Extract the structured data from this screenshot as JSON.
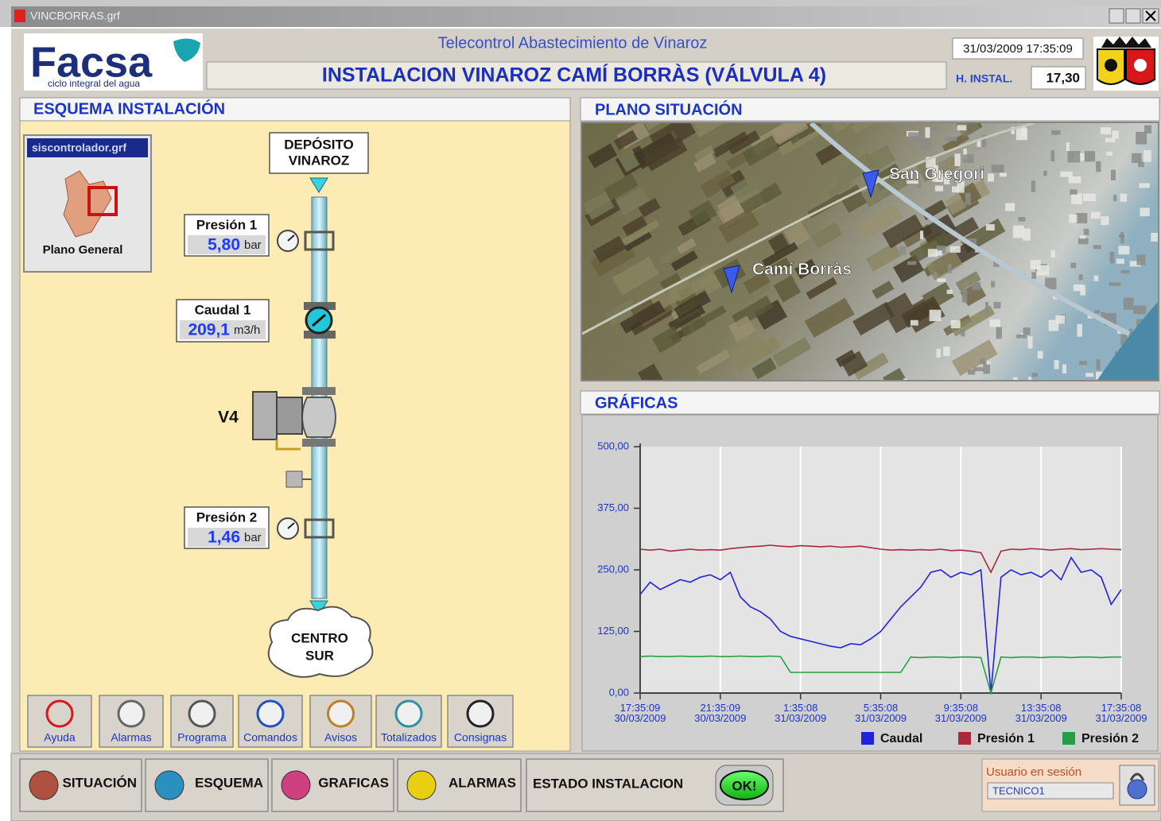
{
  "window": {
    "title": "VINCBORRAS.grf"
  },
  "header": {
    "logo": "Facsa",
    "logo_tagline": "ciclo integral del agua",
    "subtitle": "Telecontrol Abastecimiento de Vinaroz",
    "title": "INSTALACION VINAROZ CAMÍ BORRÀS (VÁLVULA 4)",
    "datetime": "31/03/2009 17:35:09",
    "h_instal_label": "H. INSTAL.",
    "h_instal_value": "17,30"
  },
  "esquema": {
    "title": "ESQUEMA INSTALACIÓN",
    "window_title": "siscontrolador.grf",
    "plano_general": "Plano General",
    "deposito": [
      "DEPÓSITO",
      "VINAROZ"
    ],
    "sensors": [
      {
        "label": "Presión 1",
        "value": "5,80",
        "unit": "bar"
      },
      {
        "label": "Caudal 1",
        "value": "209,1",
        "unit": "m3/h"
      },
      {
        "label": "Presión 2",
        "value": "1,46",
        "unit": "bar"
      }
    ],
    "valve": "V4",
    "destination": [
      "CENTRO",
      "SUR"
    ],
    "toolbar": [
      "Ayuda",
      "Alarmas",
      "Programa",
      "Comandos",
      "Avisos",
      "Totalizados",
      "Consignas"
    ]
  },
  "plano": {
    "title": "PLANO SITUACIÓN",
    "places": [
      "San Gregori",
      "Camí Borràs"
    ]
  },
  "graficas": {
    "title": "GRÁFICAS"
  },
  "chart_data": {
    "type": "line",
    "x": [
      0,
      0.5,
      1,
      1.5,
      2,
      2.5,
      3,
      3.5,
      4,
      4.5,
      5,
      5.5,
      6,
      6.5,
      7,
      7.5,
      8,
      8.5,
      9,
      9.5,
      10,
      10.5,
      11,
      11.5,
      12,
      12.5,
      13,
      13.5,
      14,
      14.5,
      15,
      15.5,
      16,
      16.5,
      17,
      17.5,
      18,
      18.5,
      19,
      19.5,
      20,
      20.5,
      21,
      21.5,
      22,
      22.5,
      23,
      23.5,
      24
    ],
    "series": [
      {
        "name": "Caudal",
        "color": "#2222dd",
        "values": [
          200,
          225,
          210,
          220,
          230,
          225,
          235,
          240,
          230,
          245,
          195,
          175,
          165,
          150,
          125,
          115,
          110,
          105,
          100,
          95,
          92,
          100,
          98,
          110,
          125,
          150,
          175,
          195,
          215,
          245,
          250,
          235,
          245,
          240,
          250,
          0,
          235,
          250,
          240,
          245,
          235,
          250,
          230,
          275,
          245,
          250,
          235,
          180,
          210
        ]
      },
      {
        "name": "Presión 1",
        "color": "#a8283c",
        "values": [
          292,
          290,
          292,
          288,
          290,
          292,
          290,
          291,
          290,
          293,
          295,
          297,
          298,
          300,
          298,
          297,
          299,
          298,
          297,
          298,
          296,
          297,
          298,
          295,
          292,
          290,
          291,
          290,
          291,
          290,
          292,
          289,
          290,
          288,
          285,
          245,
          288,
          292,
          291,
          293,
          292,
          290,
          292,
          293,
          291,
          292,
          293,
          292,
          291
        ]
      },
      {
        "name": "Presión 2",
        "color": "#22a044",
        "values": [
          74,
          75,
          74,
          74,
          75,
          74,
          74,
          75,
          74,
          74,
          75,
          74,
          74,
          75,
          74,
          42,
          42,
          42,
          42,
          42,
          42,
          42,
          42,
          42,
          42,
          42,
          42,
          73,
          72,
          73,
          73,
          72,
          73,
          73,
          72,
          0,
          73,
          72,
          73,
          73,
          72,
          73,
          73,
          72,
          73,
          73,
          72,
          73,
          73
        ]
      }
    ],
    "xlim": [
      0,
      24
    ],
    "xticks": [
      {
        "value": 0,
        "label": "17:35:09 30/03/2009"
      },
      {
        "value": 4,
        "label": "21:35:09 30/03/2009"
      },
      {
        "value": 8,
        "label": "1:35:08 31/03/2009"
      },
      {
        "value": 12,
        "label": "5:35:08 31/03/2009"
      },
      {
        "value": 16,
        "label": "9:35:08 31/03/2009"
      },
      {
        "value": 20,
        "label": "13:35:08 31/03/2009"
      },
      {
        "value": 24,
        "label": "17:35:08 31/03/2009"
      }
    ],
    "ylim": [
      0,
      500
    ],
    "yticks": [
      {
        "value": 0,
        "label": "0,00"
      },
      {
        "value": 125,
        "label": "125,00"
      },
      {
        "value": 250,
        "label": "250,00"
      },
      {
        "value": 375,
        "label": "375,00"
      },
      {
        "value": 500,
        "label": "500,00"
      }
    ],
    "grid": "x",
    "legend": "bottom"
  },
  "footer": {
    "nav": [
      "SITUACIÓN",
      "ESQUEMA",
      "GRAFICAS",
      "ALARMAS"
    ],
    "status_label": "ESTADO INSTALACION",
    "status": "OK!",
    "session_label": "Usuario en sesión",
    "user": "TECNICO1"
  }
}
